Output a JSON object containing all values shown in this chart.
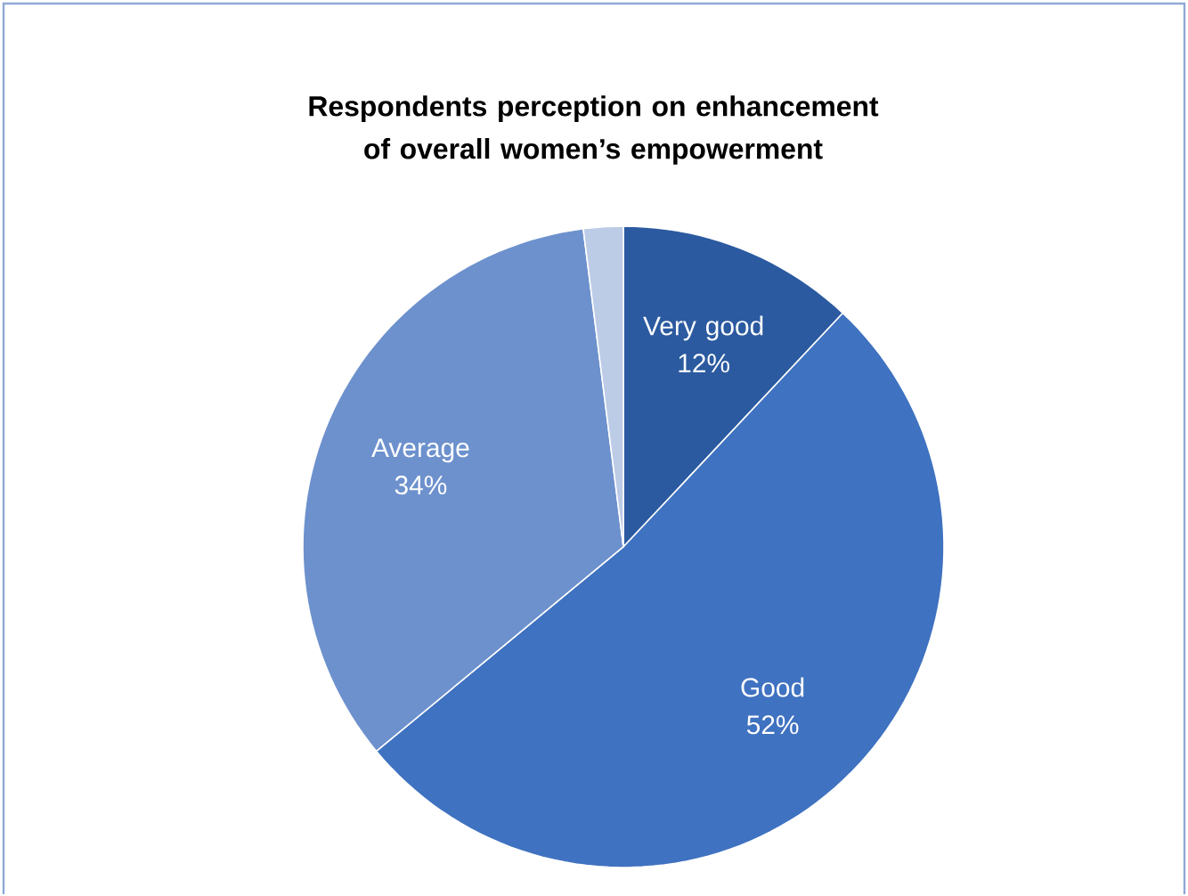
{
  "chart_data": {
    "type": "pie",
    "title": "Respondents perception on enhancement of overall women’s empowerment",
    "categories": [
      "Very good",
      "Good",
      "Average",
      null
    ],
    "values": [
      12,
      52,
      34,
      2
    ],
    "value_labels": [
      "12%",
      "52%",
      "34%",
      null
    ],
    "colors": [
      "#2b5aa0",
      "#3f72c0",
      "#6d91cd",
      "#bccbe6"
    ]
  }
}
